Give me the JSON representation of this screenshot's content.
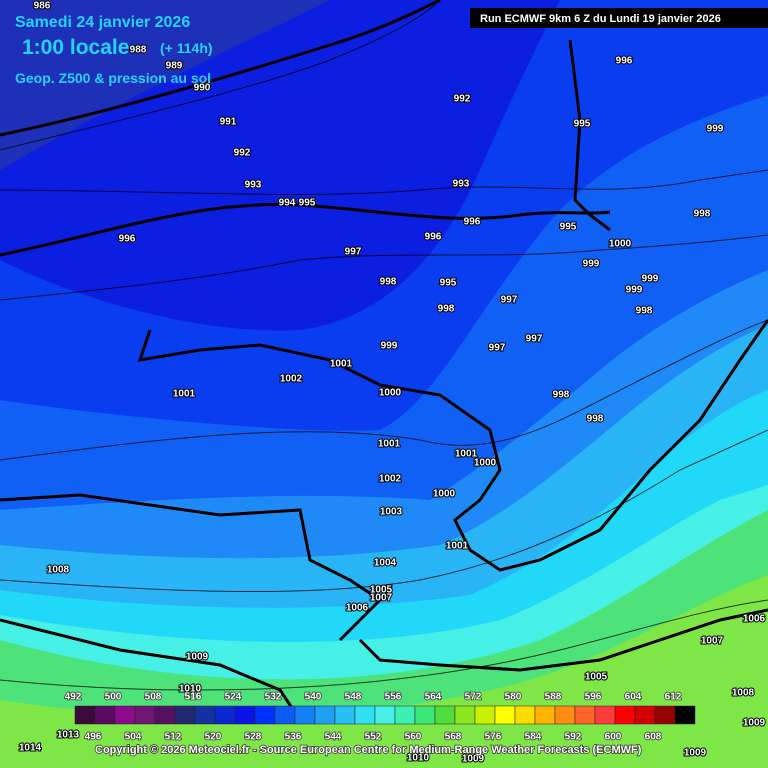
{
  "header": {
    "date": "Samedi 24 janvier 2026",
    "time": "1:00 locale",
    "lead": "(+ 114h)",
    "product": "Geop. Z500 & pression au sol"
  },
  "run": "Run ECMWF 9km 6 Z du Lundi 19 janvier 2026",
  "copyright": "Copyright © 2026 Meteociel.fr - Source European Centre for Medium-Range Weather Forecasts (ECMWF)",
  "isobar_labels": [
    986,
    988,
    989,
    990,
    991,
    992,
    993,
    994,
    995,
    996,
    997,
    998,
    999,
    1001,
    1002,
    1001,
    1000,
    1001,
    1002,
    1003,
    1004,
    1005,
    1007,
    1006,
    1008,
    1009,
    1010,
    1013,
    1014,
    1001,
    1000,
    1000,
    1001,
    992,
    995,
    996,
    999,
    993,
    996,
    996,
    995,
    998,
    997,
    997,
    997,
    998,
    998,
    995,
    1000,
    999,
    999,
    999,
    998,
    998,
    1005,
    1006,
    1007,
    1008,
    1009,
    1009,
    1010,
    1009
  ],
  "legend": {
    "upper_labels": [
      492,
      500,
      508,
      516,
      524,
      532,
      540,
      548,
      556,
      564,
      572,
      580,
      588,
      596,
      604,
      612
    ],
    "lower_labels": [
      496,
      504,
      512,
      520,
      528,
      536,
      544,
      552,
      560,
      568,
      576,
      584,
      592,
      600,
      608
    ],
    "colors": [
      "#3a0a3a",
      "#5a0a60",
      "#8c0a8c",
      "#6e1672",
      "#561060",
      "#24286e",
      "#1432a0",
      "#0a28d2",
      "#0a14e6",
      "#0032ff",
      "#0a5cf5",
      "#1480f5",
      "#1ea0f5",
      "#28c0f5",
      "#32e0f5",
      "#46f0e6",
      "#3cf0b4",
      "#3ce678",
      "#50dc3c",
      "#8ce61e",
      "#c8f000",
      "#ffff00",
      "#ffdc00",
      "#ffb400",
      "#ff8c14",
      "#ff6428",
      "#ff3c3c",
      "#ff0000",
      "#d20000",
      "#960000",
      "#000000"
    ]
  }
}
